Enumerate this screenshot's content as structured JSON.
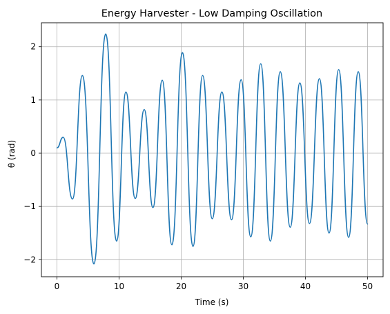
{
  "colors": {
    "series": "#1f77b4",
    "grid": "#b0b0b0",
    "axes": "#000000",
    "background": "#ffffff"
  },
  "chart_data": {
    "type": "line",
    "title": "Energy Harvester - Low Damping Oscillation",
    "xlabel": "Time (s)",
    "ylabel": "θ (rad)",
    "xlim": [
      -2.5,
      52.5
    ],
    "ylim": [
      -2.32,
      2.45
    ],
    "grid": true,
    "xticks": [
      0,
      10,
      20,
      30,
      40,
      50
    ],
    "xtick_labels": [
      "0",
      "10",
      "20",
      "30",
      "40",
      "50"
    ],
    "yticks": [
      -2,
      -1,
      0,
      1,
      2
    ],
    "ytick_labels": [
      "−2",
      "−1",
      "0",
      "1",
      "2"
    ],
    "series": [
      {
        "x": [
          0.0,
          1.0,
          2.5,
          4.1,
          5.95,
          7.85,
          9.6,
          11.1,
          12.6,
          14.05,
          15.45,
          16.95,
          18.5,
          20.2,
          21.9,
          23.45,
          25.0,
          26.55,
          28.1,
          29.65,
          31.2,
          32.8,
          34.35,
          35.95,
          37.55,
          39.1,
          40.65,
          42.25,
          43.8,
          45.35,
          46.95,
          48.5,
          50.0
        ],
        "y": [
          0.1,
          0.3,
          -0.86,
          1.46,
          -2.08,
          2.24,
          -1.65,
          1.15,
          -0.85,
          0.82,
          -1.02,
          1.37,
          -1.72,
          1.89,
          -1.75,
          1.46,
          -1.23,
          1.15,
          -1.25,
          1.38,
          -1.57,
          1.68,
          -1.65,
          1.53,
          -1.39,
          1.32,
          -1.32,
          1.4,
          -1.5,
          1.57,
          -1.58,
          1.53,
          -1.33
        ]
      }
    ]
  }
}
